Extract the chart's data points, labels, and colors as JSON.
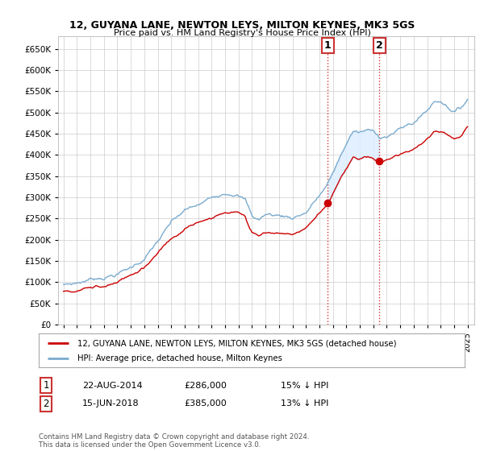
{
  "title": "12, GUYANA LANE, NEWTON LEYS, MILTON KEYNES, MK3 5GS",
  "subtitle": "Price paid vs. HM Land Registry's House Price Index (HPI)",
  "legend_line1": "12, GUYANA LANE, NEWTON LEYS, MILTON KEYNES, MK3 5GS (detached house)",
  "legend_line2": "HPI: Average price, detached house, Milton Keynes",
  "annotation1_date": "22-AUG-2014",
  "annotation1_price": "£286,000",
  "annotation1_hpi": "15% ↓ HPI",
  "annotation2_date": "15-JUN-2018",
  "annotation2_price": "£385,000",
  "annotation2_hpi": "13% ↓ HPI",
  "footer": "Contains HM Land Registry data © Crown copyright and database right 2024.\nThis data is licensed under the Open Government Licence v3.0.",
  "red_color": "#cc0000",
  "blue_color": "#7aabcf",
  "shaded_color": "#ddeeff",
  "annotation_box_color": "#cc3333",
  "background_color": "#ffffff",
  "grid_color": "#cccccc",
  "ylim": [
    0,
    680000
  ],
  "yticks": [
    0,
    50000,
    100000,
    150000,
    200000,
    250000,
    300000,
    350000,
    400000,
    450000,
    500000,
    550000,
    600000,
    650000
  ],
  "sale1_year": 2014.622,
  "sale1_price": 286000,
  "sale2_year": 2018.458,
  "sale2_price": 385000
}
